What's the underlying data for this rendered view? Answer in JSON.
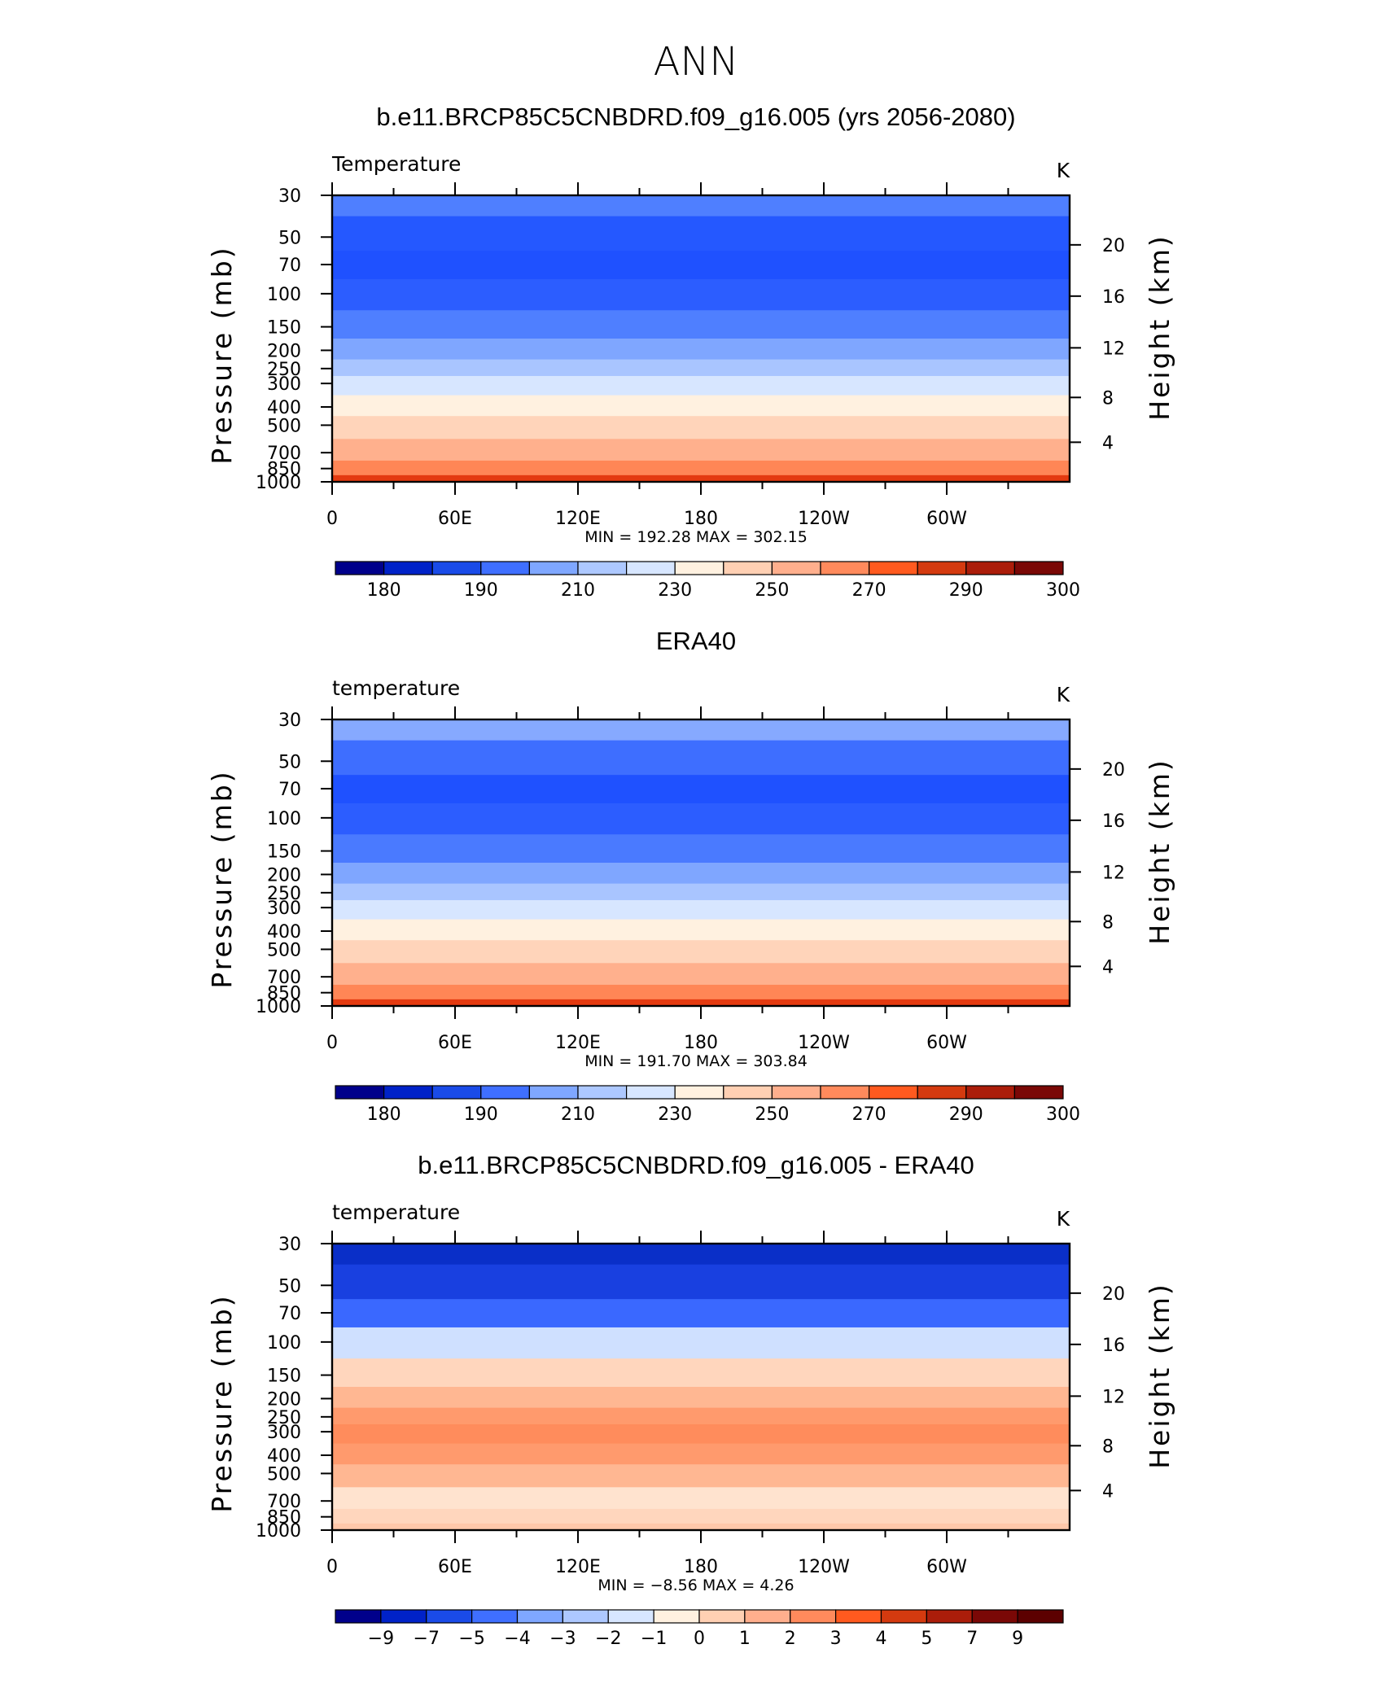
{
  "figure_title": "ANN",
  "chart_data": [
    {
      "type": "heatmap",
      "title": "b.e11.BRCP85C5CNBDRD.f09_g16.005 (yrs 2056-2080)",
      "left_label": "Temperature",
      "units": "K",
      "ylabel": "Pressure  (mb)",
      "ylabel_right": "Height  (km)",
      "x_ticks": [
        "0",
        "60E",
        "120E",
        "180",
        "120W",
        "60W"
      ],
      "y_ticks": [
        "30",
        "50",
        "70",
        "100",
        "150",
        "200",
        "250",
        "300",
        "400",
        "500",
        "700",
        "850",
        "1000"
      ],
      "right_ticks": [
        "20",
        "16",
        "12",
        "8",
        "4"
      ],
      "stats_label": "MIN =  192.28   MAX =  302.15",
      "min": 192.28,
      "max": 302.15,
      "colorbar": {
        "labels": [
          "180",
          "190",
          "210",
          "230",
          "250",
          "270",
          "290",
          "300"
        ],
        "colors": [
          "#00008b",
          "#0022c8",
          "#1a4be8",
          "#3f6fff",
          "#7fa7ff",
          "#adc8ff",
          "#d7e6ff",
          "#fff1e0",
          "#ffd0b3",
          "#ffaf8d",
          "#ff8a5c",
          "#ff5a1f",
          "#d43a0f",
          "#ab1d0a",
          "#7a0806"
        ]
      },
      "bands": [
        [
          "30",
          "#4f7fff"
        ],
        [
          "50",
          "#2558ff"
        ],
        [
          "70",
          "#1f51ff"
        ],
        [
          "100",
          "#2c5dff"
        ],
        [
          "150",
          "#4f7fff"
        ],
        [
          "200",
          "#7fa6ff"
        ],
        [
          "250",
          "#a9c5ff"
        ],
        [
          "300",
          "#d7e6ff"
        ],
        [
          "400",
          "#fff1e0"
        ],
        [
          "500",
          "#ffd4ba"
        ],
        [
          "700",
          "#ffb08d"
        ],
        [
          "850",
          "#ff8656"
        ],
        [
          "1000",
          "#e43a10"
        ]
      ]
    },
    {
      "type": "heatmap",
      "title": "ERA40",
      "left_label": "temperature",
      "units": "K",
      "ylabel": "Pressure  (mb)",
      "ylabel_right": "Height  (km)",
      "x_ticks": [
        "0",
        "60E",
        "120E",
        "180",
        "120W",
        "60W"
      ],
      "y_ticks": [
        "30",
        "50",
        "70",
        "100",
        "150",
        "200",
        "250",
        "300",
        "400",
        "500",
        "700",
        "850",
        "1000"
      ],
      "right_ticks": [
        "20",
        "16",
        "12",
        "8",
        "4"
      ],
      "stats_label": "MIN =  191.70   MAX =  303.84",
      "min": 191.7,
      "max": 303.84,
      "colorbar": {
        "labels": [
          "180",
          "190",
          "210",
          "230",
          "250",
          "270",
          "290",
          "300"
        ],
        "colors": [
          "#00008b",
          "#0022c8",
          "#1a4be8",
          "#3f6fff",
          "#7fa7ff",
          "#adc8ff",
          "#d7e6ff",
          "#fff1e0",
          "#ffd0b3",
          "#ffaf8d",
          "#ff8a5c",
          "#ff5a1f",
          "#d43a0f",
          "#ab1d0a",
          "#7a0806"
        ]
      },
      "bands": [
        [
          "30",
          "#86a9ff"
        ],
        [
          "50",
          "#3e6eff"
        ],
        [
          "70",
          "#1f51ff"
        ],
        [
          "100",
          "#2c5dff"
        ],
        [
          "150",
          "#4a7aff"
        ],
        [
          "200",
          "#7fa6ff"
        ],
        [
          "250",
          "#a9c5ff"
        ],
        [
          "300",
          "#d7e6ff"
        ],
        [
          "400",
          "#fff1e0"
        ],
        [
          "500",
          "#ffd4ba"
        ],
        [
          "700",
          "#ffb08d"
        ],
        [
          "850",
          "#ff8656"
        ],
        [
          "1000",
          "#e43a10"
        ]
      ]
    },
    {
      "type": "heatmap",
      "title": "b.e11.BRCP85C5CNBDRD.f09_g16.005 - ERA40",
      "left_label": "temperature",
      "units": "K",
      "ylabel": "Pressure  (mb)",
      "ylabel_right": "Height  (km)",
      "x_ticks": [
        "0",
        "60E",
        "120E",
        "180",
        "120W",
        "60W"
      ],
      "y_ticks": [
        "30",
        "50",
        "70",
        "100",
        "150",
        "200",
        "250",
        "300",
        "400",
        "500",
        "700",
        "850",
        "1000"
      ],
      "right_ticks": [
        "20",
        "16",
        "12",
        "8",
        "4"
      ],
      "stats_label": "MIN =   −8.56   MAX =     4.26",
      "min": -8.56,
      "max": 4.26,
      "colorbar": {
        "labels": [
          "−9",
          "−7",
          "−5",
          "−4",
          "−3",
          "−2",
          "−1",
          "0",
          "1",
          "2",
          "3",
          "4",
          "5",
          "7",
          "9"
        ],
        "colors": [
          "#00008b",
          "#0022c8",
          "#1a4be8",
          "#3f6fff",
          "#7fa7ff",
          "#adc8ff",
          "#d7e6ff",
          "#fff1e0",
          "#ffd0b3",
          "#ffaf8d",
          "#ff8a5c",
          "#ff5a1f",
          "#d43a0f",
          "#ab1d0a",
          "#7a0806",
          "#5c0000"
        ]
      },
      "bands": [
        [
          "30",
          "#0a2fc8"
        ],
        [
          "50",
          "#1940e0"
        ],
        [
          "70",
          "#3a68ff"
        ],
        [
          "100",
          "#cfe0ff"
        ],
        [
          "150",
          "#ffd6bd"
        ],
        [
          "200",
          "#ffb792"
        ],
        [
          "250",
          "#ff9a6d"
        ],
        [
          "300",
          "#ff8c5c"
        ],
        [
          "400",
          "#ff9a6d"
        ],
        [
          "500",
          "#ffb792"
        ],
        [
          "700",
          "#ffe3cf"
        ],
        [
          "850",
          "#ffd6bd"
        ],
        [
          "1000",
          "#ffc8aa"
        ]
      ]
    }
  ]
}
